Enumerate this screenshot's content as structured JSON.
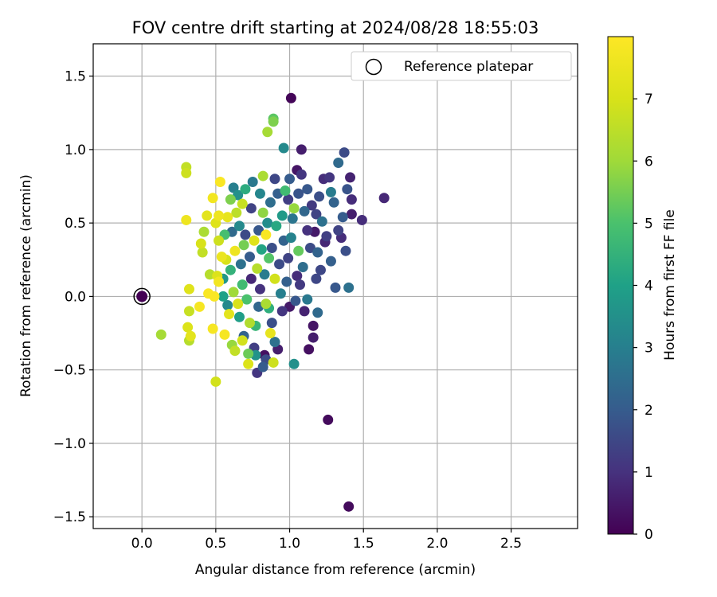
{
  "chart_data": {
    "type": "scatter",
    "title": "FOV centre drift starting at 2024/08/28 18:55:03",
    "xlabel": "Angular distance from reference (arcmin)",
    "ylabel": "Rotation from reference (arcmin)",
    "xlim": [
      -0.33,
      2.95
    ],
    "ylim": [
      -1.58,
      1.72
    ],
    "xticks": [
      0.0,
      0.5,
      1.0,
      1.5,
      2.0,
      2.5
    ],
    "xtick_labels": [
      "0.0",
      "0.5",
      "1.0",
      "1.5",
      "2.0",
      "2.5"
    ],
    "yticks": [
      -1.5,
      -1.0,
      -0.5,
      0.0,
      0.5,
      1.0,
      1.5
    ],
    "ytick_labels": [
      "−1.5",
      "−1.0",
      "−0.5",
      "0.0",
      "0.5",
      "1.0",
      "1.5"
    ],
    "grid": true,
    "legend": {
      "placement": "top-right",
      "entries": [
        "Reference platepar"
      ]
    },
    "reference_point": {
      "x": 0.0,
      "y": 0.0
    },
    "colorbar": {
      "label": "Hours from first FF file",
      "colormap": "viridis",
      "range": [
        0,
        8
      ],
      "ticks": [
        0,
        1,
        2,
        3,
        4,
        5,
        6,
        7
      ],
      "tick_labels": [
        "0",
        "1",
        "2",
        "3",
        "4",
        "5",
        "6",
        "7"
      ]
    },
    "points": [
      {
        "x": 1.01,
        "y": 1.35,
        "h": 0.1
      },
      {
        "x": 1.26,
        "y": -0.84,
        "h": 0.2
      },
      {
        "x": 1.4,
        "y": -1.43,
        "h": 0.2
      },
      {
        "x": 1.64,
        "y": 0.67,
        "h": 0.8
      },
      {
        "x": 1.49,
        "y": 0.52,
        "h": 0.9
      },
      {
        "x": 1.42,
        "y": 0.56,
        "h": 0.6
      },
      {
        "x": 1.42,
        "y": 0.66,
        "h": 0.9
      },
      {
        "x": 1.41,
        "y": 0.81,
        "h": 0.7
      },
      {
        "x": 1.37,
        "y": 0.98,
        "h": 1.6
      },
      {
        "x": 1.33,
        "y": 0.91,
        "h": 2.4
      },
      {
        "x": 1.39,
        "y": 0.73,
        "h": 1.8
      },
      {
        "x": 1.36,
        "y": 0.54,
        "h": 2.0
      },
      {
        "x": 1.35,
        "y": 0.4,
        "h": 0.9
      },
      {
        "x": 1.38,
        "y": 0.31,
        "h": 1.7
      },
      {
        "x": 1.4,
        "y": 0.06,
        "h": 2.6
      },
      {
        "x": 1.31,
        "y": 0.06,
        "h": 1.9
      },
      {
        "x": 1.28,
        "y": 0.24,
        "h": 2.1
      },
      {
        "x": 1.25,
        "y": 0.41,
        "h": 1.3
      },
      {
        "x": 1.27,
        "y": 0.81,
        "h": 1.1
      },
      {
        "x": 1.23,
        "y": 0.8,
        "h": 0.9
      },
      {
        "x": 1.2,
        "y": 0.68,
        "h": 1.7
      },
      {
        "x": 1.18,
        "y": 0.56,
        "h": 1.4
      },
      {
        "x": 1.17,
        "y": 0.44,
        "h": 0.5
      },
      {
        "x": 1.19,
        "y": 0.3,
        "h": 2.2
      },
      {
        "x": 1.18,
        "y": 0.12,
        "h": 1.5
      },
      {
        "x": 1.16,
        "y": -0.2,
        "h": 0.4
      },
      {
        "x": 1.16,
        "y": -0.28,
        "h": 0.6
      },
      {
        "x": 1.19,
        "y": -0.11,
        "h": 2.4
      },
      {
        "x": 1.13,
        "y": -0.36,
        "h": 0.3
      },
      {
        "x": 1.08,
        "y": 1.0,
        "h": 0.6
      },
      {
        "x": 1.05,
        "y": 0.86,
        "h": 0.4
      },
      {
        "x": 1.08,
        "y": 0.83,
        "h": 1.1
      },
      {
        "x": 1.06,
        "y": 0.7,
        "h": 1.8
      },
      {
        "x": 1.1,
        "y": 0.58,
        "h": 2.3
      },
      {
        "x": 1.12,
        "y": 0.45,
        "h": 1.0
      },
      {
        "x": 1.14,
        "y": 0.33,
        "h": 1.6
      },
      {
        "x": 1.09,
        "y": 0.2,
        "h": 2.5
      },
      {
        "x": 1.07,
        "y": 0.08,
        "h": 1.2
      },
      {
        "x": 1.04,
        "y": -0.03,
        "h": 1.9
      },
      {
        "x": 1.1,
        "y": -0.1,
        "h": 0.7
      },
      {
        "x": 1.12,
        "y": -0.02,
        "h": 2.8
      },
      {
        "x": 1.03,
        "y": -0.46,
        "h": 3.5
      },
      {
        "x": 1.0,
        "y": -0.07,
        "h": 0.5
      },
      {
        "x": 0.98,
        "y": 0.1,
        "h": 2.1
      },
      {
        "x": 0.99,
        "y": 0.26,
        "h": 1.4
      },
      {
        "x": 1.01,
        "y": 0.4,
        "h": 3.1
      },
      {
        "x": 1.02,
        "y": 0.53,
        "h": 2.7
      },
      {
        "x": 0.99,
        "y": 0.66,
        "h": 1.3
      },
      {
        "x": 1.0,
        "y": 0.8,
        "h": 2.0
      },
      {
        "x": 0.96,
        "y": 1.01,
        "h": 3.3
      },
      {
        "x": 0.95,
        "y": 0.55,
        "h": 3.8
      },
      {
        "x": 0.96,
        "y": 0.38,
        "h": 2.2
      },
      {
        "x": 0.93,
        "y": 0.22,
        "h": 1.6
      },
      {
        "x": 0.94,
        "y": 0.02,
        "h": 3.0
      },
      {
        "x": 0.95,
        "y": -0.1,
        "h": 1.1
      },
      {
        "x": 0.92,
        "y": -0.36,
        "h": 0.6
      },
      {
        "x": 0.9,
        "y": -0.31,
        "h": 2.6
      },
      {
        "x": 0.89,
        "y": 1.21,
        "h": 5.2
      },
      {
        "x": 0.89,
        "y": 1.19,
        "h": 5.6
      },
      {
        "x": 0.85,
        "y": 1.12,
        "h": 6.1
      },
      {
        "x": 0.9,
        "y": 0.8,
        "h": 1.5
      },
      {
        "x": 0.87,
        "y": 0.64,
        "h": 2.5
      },
      {
        "x": 0.91,
        "y": 0.48,
        "h": 4.2
      },
      {
        "x": 0.88,
        "y": 0.33,
        "h": 1.7
      },
      {
        "x": 0.9,
        "y": 0.12,
        "h": 6.9
      },
      {
        "x": 0.86,
        "y": -0.08,
        "h": 4.4
      },
      {
        "x": 0.87,
        "y": -0.25,
        "h": 7.4
      },
      {
        "x": 0.89,
        "y": -0.45,
        "h": 6.8
      },
      {
        "x": 0.84,
        "y": -0.43,
        "h": 1.6
      },
      {
        "x": 0.83,
        "y": -0.4,
        "h": 0.3
      },
      {
        "x": 0.82,
        "y": -0.48,
        "h": 2.0
      },
      {
        "x": 0.78,
        "y": -0.52,
        "h": 1.1
      },
      {
        "x": 0.77,
        "y": -0.4,
        "h": 3.6
      },
      {
        "x": 0.72,
        "y": -0.39,
        "h": 5.4
      },
      {
        "x": 0.72,
        "y": -0.46,
        "h": 7.1
      },
      {
        "x": 0.82,
        "y": 0.82,
        "h": 6.2
      },
      {
        "x": 0.8,
        "y": 0.7,
        "h": 3.2
      },
      {
        "x": 0.82,
        "y": 0.57,
        "h": 5.8
      },
      {
        "x": 0.79,
        "y": 0.45,
        "h": 1.9
      },
      {
        "x": 0.81,
        "y": 0.32,
        "h": 4.1
      },
      {
        "x": 0.78,
        "y": 0.19,
        "h": 6.4
      },
      {
        "x": 0.8,
        "y": 0.05,
        "h": 1.0
      },
      {
        "x": 0.79,
        "y": -0.07,
        "h": 2.3
      },
      {
        "x": 0.77,
        "y": -0.2,
        "h": 4.6
      },
      {
        "x": 0.75,
        "y": 0.78,
        "h": 2.8
      },
      {
        "x": 0.74,
        "y": 0.6,
        "h": 1.4
      },
      {
        "x": 0.76,
        "y": 0.38,
        "h": 7.2
      },
      {
        "x": 0.73,
        "y": 0.27,
        "h": 2.0
      },
      {
        "x": 0.74,
        "y": 0.12,
        "h": 0.8
      },
      {
        "x": 0.71,
        "y": -0.02,
        "h": 5.0
      },
      {
        "x": 0.73,
        "y": -0.18,
        "h": 6.3
      },
      {
        "x": 0.7,
        "y": 0.73,
        "h": 4.3
      },
      {
        "x": 0.68,
        "y": 0.63,
        "h": 6.7
      },
      {
        "x": 0.66,
        "y": 0.48,
        "h": 3.3
      },
      {
        "x": 0.69,
        "y": 0.35,
        "h": 5.5
      },
      {
        "x": 0.67,
        "y": 0.22,
        "h": 2.6
      },
      {
        "x": 0.68,
        "y": 0.08,
        "h": 4.8
      },
      {
        "x": 0.65,
        "y": -0.05,
        "h": 7.0
      },
      {
        "x": 0.66,
        "y": -0.14,
        "h": 3.9
      },
      {
        "x": 0.62,
        "y": 0.74,
        "h": 3.0
      },
      {
        "x": 0.64,
        "y": 0.57,
        "h": 6.5
      },
      {
        "x": 0.61,
        "y": 0.44,
        "h": 2.4
      },
      {
        "x": 0.63,
        "y": 0.31,
        "h": 7.6
      },
      {
        "x": 0.6,
        "y": 0.18,
        "h": 4.5
      },
      {
        "x": 0.62,
        "y": 0.03,
        "h": 6.0
      },
      {
        "x": 0.59,
        "y": -0.12,
        "h": 7.3
      },
      {
        "x": 0.61,
        "y": -0.33,
        "h": 5.9
      },
      {
        "x": 0.63,
        "y": -0.37,
        "h": 6.6
      },
      {
        "x": 0.58,
        "y": 0.54,
        "h": 7.4
      },
      {
        "x": 0.56,
        "y": 0.42,
        "h": 4.9
      },
      {
        "x": 0.57,
        "y": 0.25,
        "h": 7.0
      },
      {
        "x": 0.55,
        "y": 0.12,
        "h": 3.7
      },
      {
        "x": 0.56,
        "y": -0.26,
        "h": 7.8
      },
      {
        "x": 0.53,
        "y": 0.78,
        "h": 7.9
      },
      {
        "x": 0.52,
        "y": 0.55,
        "h": 7.6
      },
      {
        "x": 0.5,
        "y": 0.5,
        "h": 7.2
      },
      {
        "x": 0.52,
        "y": 0.38,
        "h": 6.8
      },
      {
        "x": 0.54,
        "y": 0.27,
        "h": 7.5
      },
      {
        "x": 0.51,
        "y": 0.14,
        "h": 7.1
      },
      {
        "x": 0.52,
        "y": 0.1,
        "h": 7.7
      },
      {
        "x": 0.49,
        "y": 0.0,
        "h": 7.9
      },
      {
        "x": 0.5,
        "y": -0.58,
        "h": 6.9
      },
      {
        "x": 0.48,
        "y": -0.22,
        "h": 7.8
      },
      {
        "x": 0.48,
        "y": 0.67,
        "h": 7.7
      },
      {
        "x": 0.46,
        "y": 0.15,
        "h": 6.4
      },
      {
        "x": 0.45,
        "y": 0.02,
        "h": 7.9
      },
      {
        "x": 0.44,
        "y": 0.55,
        "h": 7.3
      },
      {
        "x": 0.42,
        "y": 0.44,
        "h": 6.2
      },
      {
        "x": 0.4,
        "y": 0.36,
        "h": 7.0
      },
      {
        "x": 0.41,
        "y": 0.3,
        "h": 6.6
      },
      {
        "x": 0.39,
        "y": -0.07,
        "h": 7.8
      },
      {
        "x": 0.32,
        "y": 0.05,
        "h": 7.2
      },
      {
        "x": 0.32,
        "y": -0.1,
        "h": 6.7
      },
      {
        "x": 0.3,
        "y": 0.88,
        "h": 6.6
      },
      {
        "x": 0.3,
        "y": 0.84,
        "h": 6.8
      },
      {
        "x": 0.3,
        "y": 0.52,
        "h": 7.6
      },
      {
        "x": 0.31,
        "y": -0.21,
        "h": 7.1
      },
      {
        "x": 0.33,
        "y": -0.27,
        "h": 7.3
      },
      {
        "x": 0.32,
        "y": -0.3,
        "h": 6.4
      },
      {
        "x": 0.13,
        "y": -0.26,
        "h": 6.1
      },
      {
        "x": 1.12,
        "y": 0.73,
        "h": 1.9
      },
      {
        "x": 1.15,
        "y": 0.62,
        "h": 1.2
      },
      {
        "x": 1.22,
        "y": 0.51,
        "h": 2.6
      },
      {
        "x": 1.24,
        "y": 0.37,
        "h": 0.8
      },
      {
        "x": 1.21,
        "y": 0.18,
        "h": 1.5
      },
      {
        "x": 1.3,
        "y": 0.64,
        "h": 2.2
      },
      {
        "x": 1.33,
        "y": 0.45,
        "h": 1.4
      },
      {
        "x": 1.28,
        "y": 0.71,
        "h": 2.9
      },
      {
        "x": 1.05,
        "y": 0.14,
        "h": 0.9
      },
      {
        "x": 1.06,
        "y": 0.31,
        "h": 5.3
      },
      {
        "x": 1.03,
        "y": 0.6,
        "h": 5.9
      },
      {
        "x": 0.97,
        "y": 0.72,
        "h": 4.8
      },
      {
        "x": 0.92,
        "y": 0.7,
        "h": 2.1
      },
      {
        "x": 0.85,
        "y": 0.5,
        "h": 3.4
      },
      {
        "x": 0.84,
        "y": 0.42,
        "h": 7.9
      },
      {
        "x": 0.86,
        "y": 0.26,
        "h": 5.1
      },
      {
        "x": 0.83,
        "y": 0.15,
        "h": 2.9
      },
      {
        "x": 0.84,
        "y": -0.05,
        "h": 6.2
      },
      {
        "x": 0.88,
        "y": -0.18,
        "h": 1.7
      },
      {
        "x": 0.69,
        "y": -0.27,
        "h": 2.2
      },
      {
        "x": 0.68,
        "y": -0.3,
        "h": 6.9
      },
      {
        "x": 0.76,
        "y": -0.35,
        "h": 1.3
      },
      {
        "x": 0.58,
        "y": -0.06,
        "h": 3.3
      },
      {
        "x": 0.55,
        "y": 0.0,
        "h": 4.0
      },
      {
        "x": 0.6,
        "y": 0.66,
        "h": 5.6
      },
      {
        "x": 0.65,
        "y": 0.69,
        "h": 3.5
      },
      {
        "x": 0.7,
        "y": 0.42,
        "h": 1.6
      }
    ]
  }
}
